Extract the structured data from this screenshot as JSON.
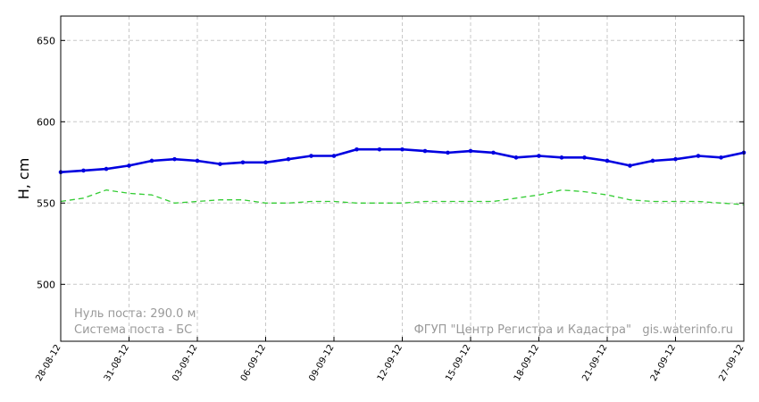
{
  "chart_data": {
    "type": "line",
    "ylabel": "H, cm",
    "ylim": [
      465,
      665
    ],
    "yticks": [
      500,
      550,
      600,
      650
    ],
    "grid": true,
    "x": [
      "28-08-12",
      "29-08-12",
      "30-08-12",
      "31-08-12",
      "01-09-12",
      "02-09-12",
      "03-09-12",
      "04-09-12",
      "05-09-12",
      "06-09-12",
      "07-09-12",
      "08-09-12",
      "09-09-12",
      "10-09-12",
      "11-09-12",
      "12-09-12",
      "13-09-12",
      "14-09-12",
      "15-09-12",
      "16-09-12",
      "17-09-12",
      "18-09-12",
      "19-09-12",
      "20-09-12",
      "21-09-12",
      "22-09-12",
      "23-09-12",
      "24-09-12",
      "25-09-12",
      "26-09-12",
      "27-09-12"
    ],
    "xtick_labels": [
      "28-08-12",
      "31-08-12",
      "03-09-12",
      "06-09-12",
      "09-09-12",
      "12-09-12",
      "15-09-12",
      "18-09-12",
      "21-09-12",
      "24-09-12",
      "27-09-12"
    ],
    "series": [
      {
        "color": "#0000e0",
        "style": "solid-markers",
        "values": [
          569,
          570,
          571,
          573,
          576,
          577,
          576,
          574,
          575,
          575,
          577,
          579,
          579,
          583,
          583,
          583,
          582,
          581,
          582,
          581,
          578,
          579,
          578,
          578,
          576,
          573,
          576,
          577,
          579,
          578,
          581
        ]
      },
      {
        "color": "#33cc33",
        "style": "dashed",
        "values": [
          551,
          553,
          558,
          556,
          555,
          550,
          551,
          552,
          552,
          550,
          550,
          551,
          551,
          550,
          550,
          550,
          551,
          551,
          551,
          551,
          553,
          555,
          558,
          557,
          555,
          552,
          551,
          551,
          551,
          550,
          549
        ]
      }
    ],
    "annotations": {
      "left_line1": "Нуль поста: 290.0 м",
      "left_line2": "Система поста - БС",
      "right_credit": "ФГУП \"Центр Регистра и Кадастра\"   gis.waterinfo.ru"
    }
  }
}
